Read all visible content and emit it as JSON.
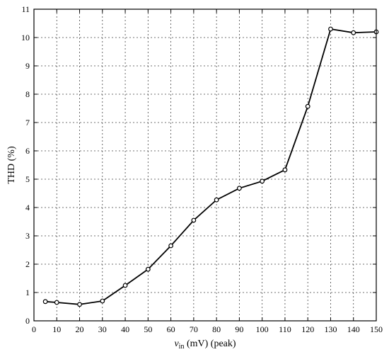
{
  "chart_data": {
    "type": "line",
    "title": "",
    "xlabel_var": "v",
    "xlabel_sub": "in",
    "xlabel_rest": " (mV) (peak)",
    "ylabel": "THD (%)",
    "xlim": [
      0,
      150
    ],
    "ylim": [
      0,
      11
    ],
    "xticks": [
      0,
      10,
      20,
      30,
      40,
      50,
      60,
      70,
      80,
      90,
      100,
      110,
      120,
      130,
      140,
      150
    ],
    "yticks": [
      0,
      1,
      2,
      3,
      4,
      5,
      6,
      7,
      8,
      9,
      10,
      11
    ],
    "grid": true,
    "series": [
      {
        "x": [
          5,
          10,
          20,
          30,
          40,
          50,
          60,
          70,
          80,
          90,
          100,
          110,
          120,
          130,
          140,
          150
        ],
        "y": [
          0.68,
          0.65,
          0.58,
          0.7,
          1.25,
          1.82,
          2.65,
          3.55,
          4.27,
          4.68,
          4.93,
          5.33,
          7.57,
          10.3,
          10.17,
          10.2
        ]
      }
    ]
  }
}
